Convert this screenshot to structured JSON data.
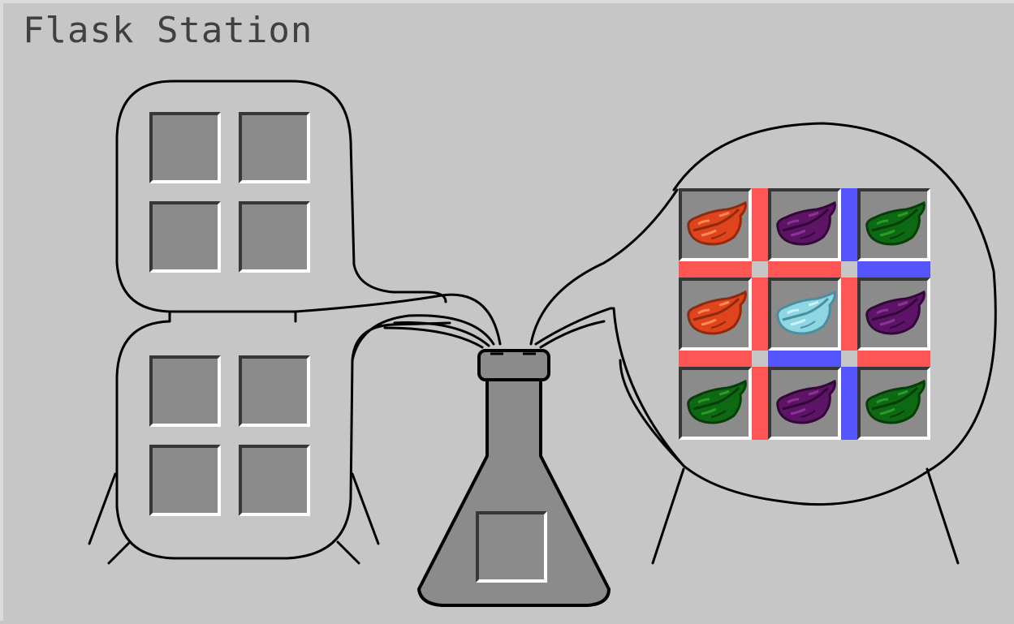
{
  "title": "Flask Station",
  "colors": {
    "pipe_red": "#ff5555",
    "pipe_blue": "#5555ff",
    "slot_fill": "#8b8b8b",
    "background": "#c6c6c6"
  },
  "upper_input_grid": {
    "slots": [
      {
        "item": null
      },
      {
        "item": null
      },
      {
        "item": null
      },
      {
        "item": null
      }
    ]
  },
  "lower_input_grid": {
    "slots": [
      {
        "item": null
      },
      {
        "item": null
      },
      {
        "item": null
      },
      {
        "item": null
      }
    ]
  },
  "flask_slot": {
    "item": null
  },
  "herb_grid": {
    "slots": [
      {
        "item": "red-herb"
      },
      {
        "item": "purple-herb"
      },
      {
        "item": "green-herb"
      },
      {
        "item": "red-herb"
      },
      {
        "item": "cyan-herb"
      },
      {
        "item": "purple-herb"
      },
      {
        "item": "green-herb"
      },
      {
        "item": "purple-herb"
      },
      {
        "item": "green-herb"
      }
    ],
    "herb_colors": {
      "red-herb": {
        "main": "#e0441c",
        "dark": "#8e2a0e",
        "light": "#ff8a52"
      },
      "purple-herb": {
        "main": "#5e1466",
        "dark": "#330838",
        "light": "#8a3494"
      },
      "green-herb": {
        "main": "#0d6a12",
        "dark": "#063d08",
        "light": "#2c9a2a"
      },
      "cyan-herb": {
        "main": "#8ed6e2",
        "dark": "#4a8ea0",
        "light": "#cdf1f7"
      }
    },
    "connectors": {
      "h_row1": [
        "red",
        "red",
        "blue"
      ],
      "h_row2": [
        "red",
        "blue",
        "red"
      ],
      "v_col1": [
        "red",
        "red",
        "red"
      ],
      "v_col2": [
        "blue",
        "red",
        "blue"
      ]
    }
  }
}
